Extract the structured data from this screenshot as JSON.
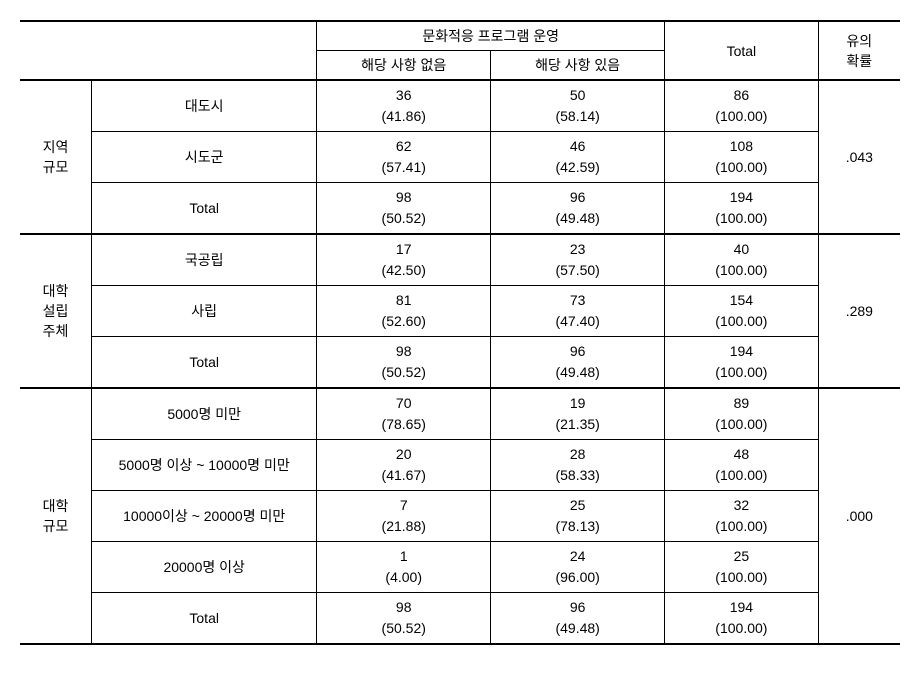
{
  "header": {
    "group_title": "문화적응 프로그램 운영",
    "col_none": "해당 사항 없음",
    "col_has": "해당 사항 있음",
    "total": "Total",
    "sig": "유의\n확률"
  },
  "sections": [
    {
      "name": "지역\n규모",
      "sig": ".043",
      "rows": [
        {
          "label": "대도시",
          "v1": "36",
          "p1": "(41.86)",
          "v2": "50",
          "p2": "(58.14)",
          "t": "86",
          "pt": "(100.00)"
        },
        {
          "label": "시도군",
          "v1": "62",
          "p1": "(57.41)",
          "v2": "46",
          "p2": "(42.59)",
          "t": "108",
          "pt": "(100.00)"
        },
        {
          "label": "Total",
          "v1": "98",
          "p1": "(50.52)",
          "v2": "96",
          "p2": "(49.48)",
          "t": "194",
          "pt": "(100.00)"
        }
      ]
    },
    {
      "name": "대학\n설립\n주체",
      "sig": ".289",
      "rows": [
        {
          "label": "국공립",
          "v1": "17",
          "p1": "(42.50)",
          "v2": "23",
          "p2": "(57.50)",
          "t": "40",
          "pt": "(100.00)"
        },
        {
          "label": "사립",
          "v1": "81",
          "p1": "(52.60)",
          "v2": "73",
          "p2": "(47.40)",
          "t": "154",
          "pt": "(100.00)"
        },
        {
          "label": "Total",
          "v1": "98",
          "p1": "(50.52)",
          "v2": "96",
          "p2": "(49.48)",
          "t": "194",
          "pt": "(100.00)"
        }
      ]
    },
    {
      "name": "대학\n규모",
      "sig": ".000",
      "rows": [
        {
          "label": "5000명 미만",
          "v1": "70",
          "p1": "(78.65)",
          "v2": "19",
          "p2": "(21.35)",
          "t": "89",
          "pt": "(100.00)"
        },
        {
          "label": "5000명 이상 ~ 10000명 미만",
          "v1": "20",
          "p1": "(41.67)",
          "v2": "28",
          "p2": "(58.33)",
          "t": "48",
          "pt": "(100.00)"
        },
        {
          "label": "10000이상 ~ 20000명 미만",
          "v1": "7",
          "p1": "(21.88)",
          "v2": "25",
          "p2": "(78.13)",
          "t": "32",
          "pt": "(100.00)"
        },
        {
          "label": "20000명 이상",
          "v1": "1",
          "p1": "(4.00)",
          "v2": "24",
          "p2": "(96.00)",
          "t": "25",
          "pt": "(100.00)"
        },
        {
          "label": "Total",
          "v1": "98",
          "p1": "(50.52)",
          "v2": "96",
          "p2": "(49.48)",
          "t": "194",
          "pt": "(100.00)"
        }
      ]
    }
  ]
}
